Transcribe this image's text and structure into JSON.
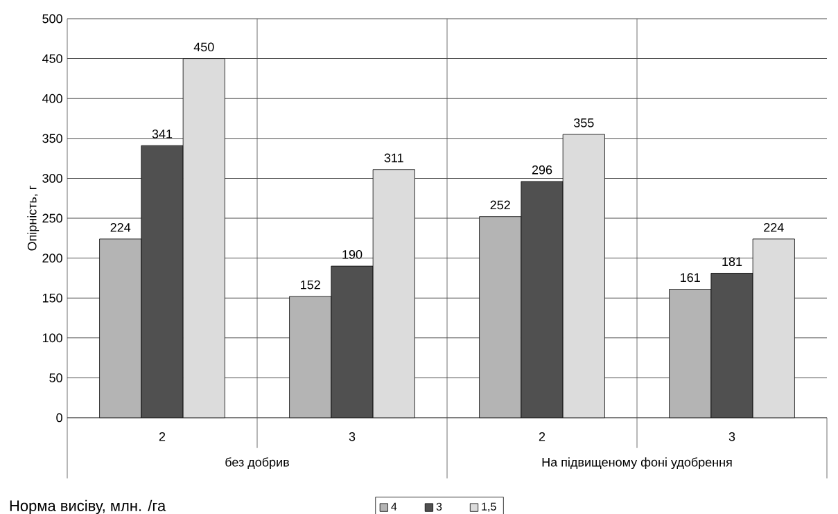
{
  "chart_data": {
    "type": "bar",
    "xlabel": "Норма висіву, млн. /га",
    "ylabel": "Опірність, г",
    "categories": [
      "2",
      "3",
      "2",
      "3"
    ],
    "series": [
      {
        "name": "4",
        "color": "#b4b4b4",
        "values": [
          224,
          152,
          252,
          161
        ]
      },
      {
        "name": "3",
        "color": "#505050",
        "values": [
          341,
          190,
          296,
          181
        ]
      },
      {
        "name": "1,5",
        "color": "#dcdcdc",
        "values": [
          450,
          311,
          355,
          224
        ]
      }
    ],
    "annotations": [
      "без добрив",
      "На підвищеному фоні удобрення"
    ],
    "ylim": [
      0,
      500
    ],
    "yticks": [
      0,
      50,
      100,
      150,
      200,
      250,
      300,
      350,
      400,
      450,
      500
    ],
    "grid": "y",
    "legend": "bottom",
    "data_labels": true
  }
}
